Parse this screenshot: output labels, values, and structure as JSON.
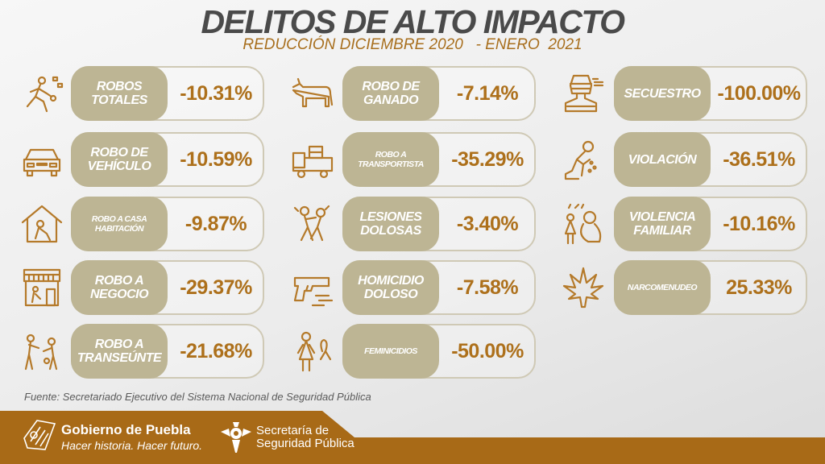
{
  "header": {
    "title": "DELITOS DE ALTO IMPACTO",
    "subtitle": "REDUCCIÓN DICIEMBRE 2020   - ENERO  2021"
  },
  "colors": {
    "label_bg": "#bdb594",
    "value": "#ad701b",
    "band": "#a86a17",
    "title": "#4a4a4a"
  },
  "crimes": [
    {
      "label": "ROBOS TOTALES",
      "value": "-10.31%",
      "icon": "running-thief-icon"
    },
    {
      "label": "ROBO DE VEHÍCULO",
      "value": "-10.59%",
      "icon": "car-icon"
    },
    {
      "label": "ROBO A CASA HABITACIÓN",
      "value": "-9.87%",
      "icon": "house-burglar-icon"
    },
    {
      "label": "ROBO A NEGOCIO",
      "value": "-29.37%",
      "icon": "store-icon"
    },
    {
      "label": "ROBO A TRANSEÚNTE",
      "value": "-21.68%",
      "icon": "mugging-icon"
    },
    {
      "label": "ROBO DE GANADO",
      "value": "-7.14%",
      "icon": "cow-icon"
    },
    {
      "label": "ROBO A TRANSPORTISTA",
      "value": "-35.29%",
      "icon": "truck-icon"
    },
    {
      "label": "LESIONES DOLOSAS",
      "value": "-3.40%",
      "icon": "fight-icon"
    },
    {
      "label": "HOMICIDIO DOLOSO",
      "value": "-7.58%",
      "icon": "gun-icon"
    },
    {
      "label": "FEMINICIDIOS",
      "value": "-50.00%",
      "icon": "woman-ribbon-icon"
    },
    {
      "label": "SECUESTRO",
      "value": "-100.00%",
      "icon": "kidnapped-person-icon"
    },
    {
      "label": "VIOLACIÓN",
      "value": "-36.51%",
      "icon": "crying-person-icon"
    },
    {
      "label": "VIOLENCIA FAMILIAR",
      "value": "-10.16%",
      "icon": "family-violence-icon"
    },
    {
      "label": "NARCOMENUDEO",
      "value": "25.33%",
      "icon": "cannabis-leaf-icon"
    }
  ],
  "source": "Fuente: Secretariado Ejecutivo del Sistema Nacional de Seguridad Pública",
  "footer": {
    "gov_name": "Gobierno de Puebla",
    "gov_slogan": "Hacer historia. Hacer futuro.",
    "ssp_line1": "Secretaría de",
    "ssp_line2": "Seguridad Pública"
  }
}
